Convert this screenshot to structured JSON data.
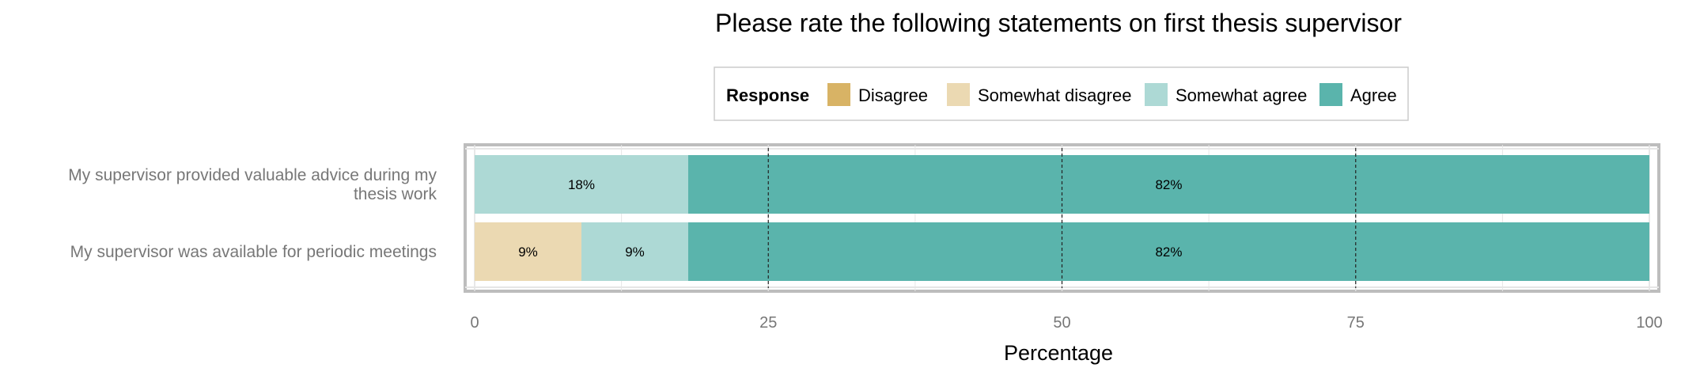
{
  "chart_data": {
    "type": "bar",
    "orientation": "horizontal",
    "stacked": true,
    "title": "Please rate the following statements on first thesis supervisor",
    "xlabel": "Percentage",
    "ylabel": "",
    "xlim": [
      0,
      100
    ],
    "x_ticks": [
      "0",
      "25",
      "50",
      "75",
      "100"
    ],
    "grid": true,
    "legend": {
      "title": "Response",
      "placement": "top"
    },
    "categories": [
      "My supervisor provided valuable advice during my thesis work",
      "My supervisor was available for periodic meetings"
    ],
    "category_label_lines": [
      [
        "My supervisor provided valuable advice during my",
        "thesis work"
      ],
      [
        "My supervisor was available for periodic meetings"
      ]
    ],
    "series": [
      {
        "name": "Disagree",
        "color": "#D8B365",
        "values": [
          0,
          0
        ],
        "labels": [
          "",
          ""
        ]
      },
      {
        "name": "Somewhat disagree",
        "color": "#EBD9B2",
        "values": [
          0,
          9.09
        ],
        "labels": [
          "",
          "9%"
        ]
      },
      {
        "name": "Somewhat agree",
        "color": "#ADD9D5",
        "values": [
          18.18,
          9.09
        ],
        "labels": [
          "18%",
          "9%"
        ]
      },
      {
        "name": "Agree",
        "color": "#5AB4AC",
        "values": [
          81.82,
          81.82
        ],
        "labels": [
          "82%",
          "82%"
        ]
      }
    ]
  }
}
